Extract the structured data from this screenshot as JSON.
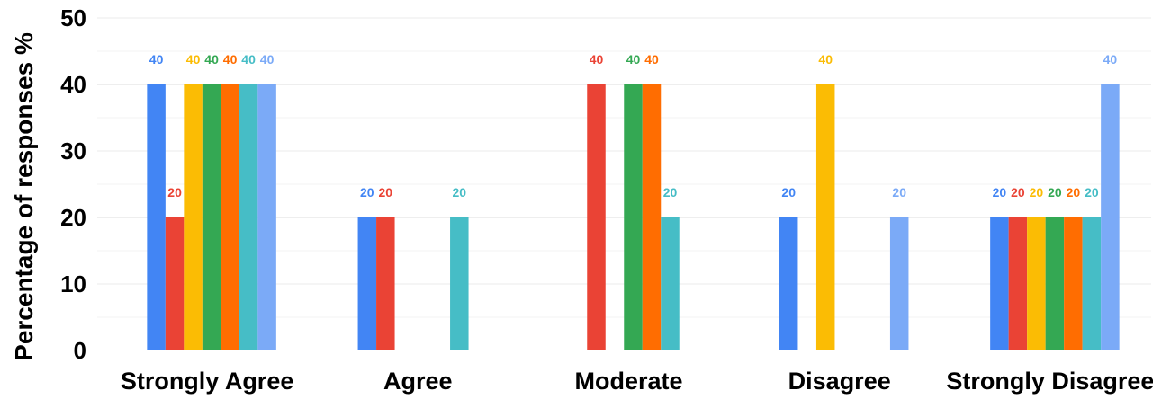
{
  "chart_data": {
    "type": "bar",
    "title": "",
    "xlabel": "",
    "ylabel": "Percentage of responses %",
    "ylim": [
      0,
      50
    ],
    "yticks": [
      0,
      10,
      20,
      30,
      40,
      50
    ],
    "grid": true,
    "categories": [
      "Strongly Agree",
      "Agree",
      "Moderate",
      "Disagree",
      "Strongly Disagree"
    ],
    "series": [
      {
        "color": "#4285F4",
        "values": [
          40,
          20,
          null,
          20,
          20
        ]
      },
      {
        "color": "#EA4335",
        "values": [
          20,
          20,
          40,
          null,
          20
        ]
      },
      {
        "color": "#FBBC04",
        "values": [
          40,
          null,
          null,
          40,
          20
        ]
      },
      {
        "color": "#34A853",
        "values": [
          40,
          null,
          40,
          null,
          20
        ]
      },
      {
        "color": "#FF6D01",
        "values": [
          40,
          null,
          40,
          null,
          20
        ]
      },
      {
        "color": "#46BDC6",
        "values": [
          40,
          20,
          20,
          null,
          20
        ]
      },
      {
        "color": "#7BAAF7",
        "values": [
          40,
          null,
          null,
          20,
          40
        ]
      }
    ]
  }
}
